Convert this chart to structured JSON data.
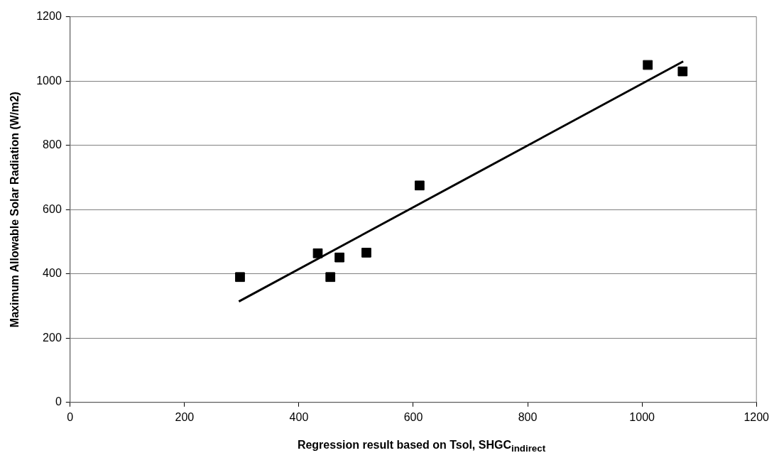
{
  "chart_data": {
    "type": "scatter",
    "xlabel": "Regression result based on Tsol, SHGC$_{indirect}$",
    "ylabel": "Maximum Allowable Solar Radiation (W/m2)",
    "xlim": [
      0,
      1200
    ],
    "xticks": [
      0,
      200,
      400,
      600,
      800,
      1000,
      1200
    ],
    "ylim": [
      0,
      1200
    ],
    "yticks": [
      0,
      200,
      400,
      600,
      800,
      1000,
      1200
    ],
    "grid": "y",
    "legend": false,
    "marker": "square",
    "series": [
      {
        "type": "scatter",
        "color": "#000000",
        "x": [
          297,
          433,
          455,
          471,
          518,
          611,
          1010,
          1071
        ],
        "values": [
          390,
          464,
          390,
          451,
          466,
          675,
          1050,
          1030
        ]
      },
      {
        "type": "line",
        "color": "#000000",
        "marker": "none",
        "x": [
          295,
          1072
        ],
        "values": [
          314,
          1061
        ]
      }
    ]
  }
}
